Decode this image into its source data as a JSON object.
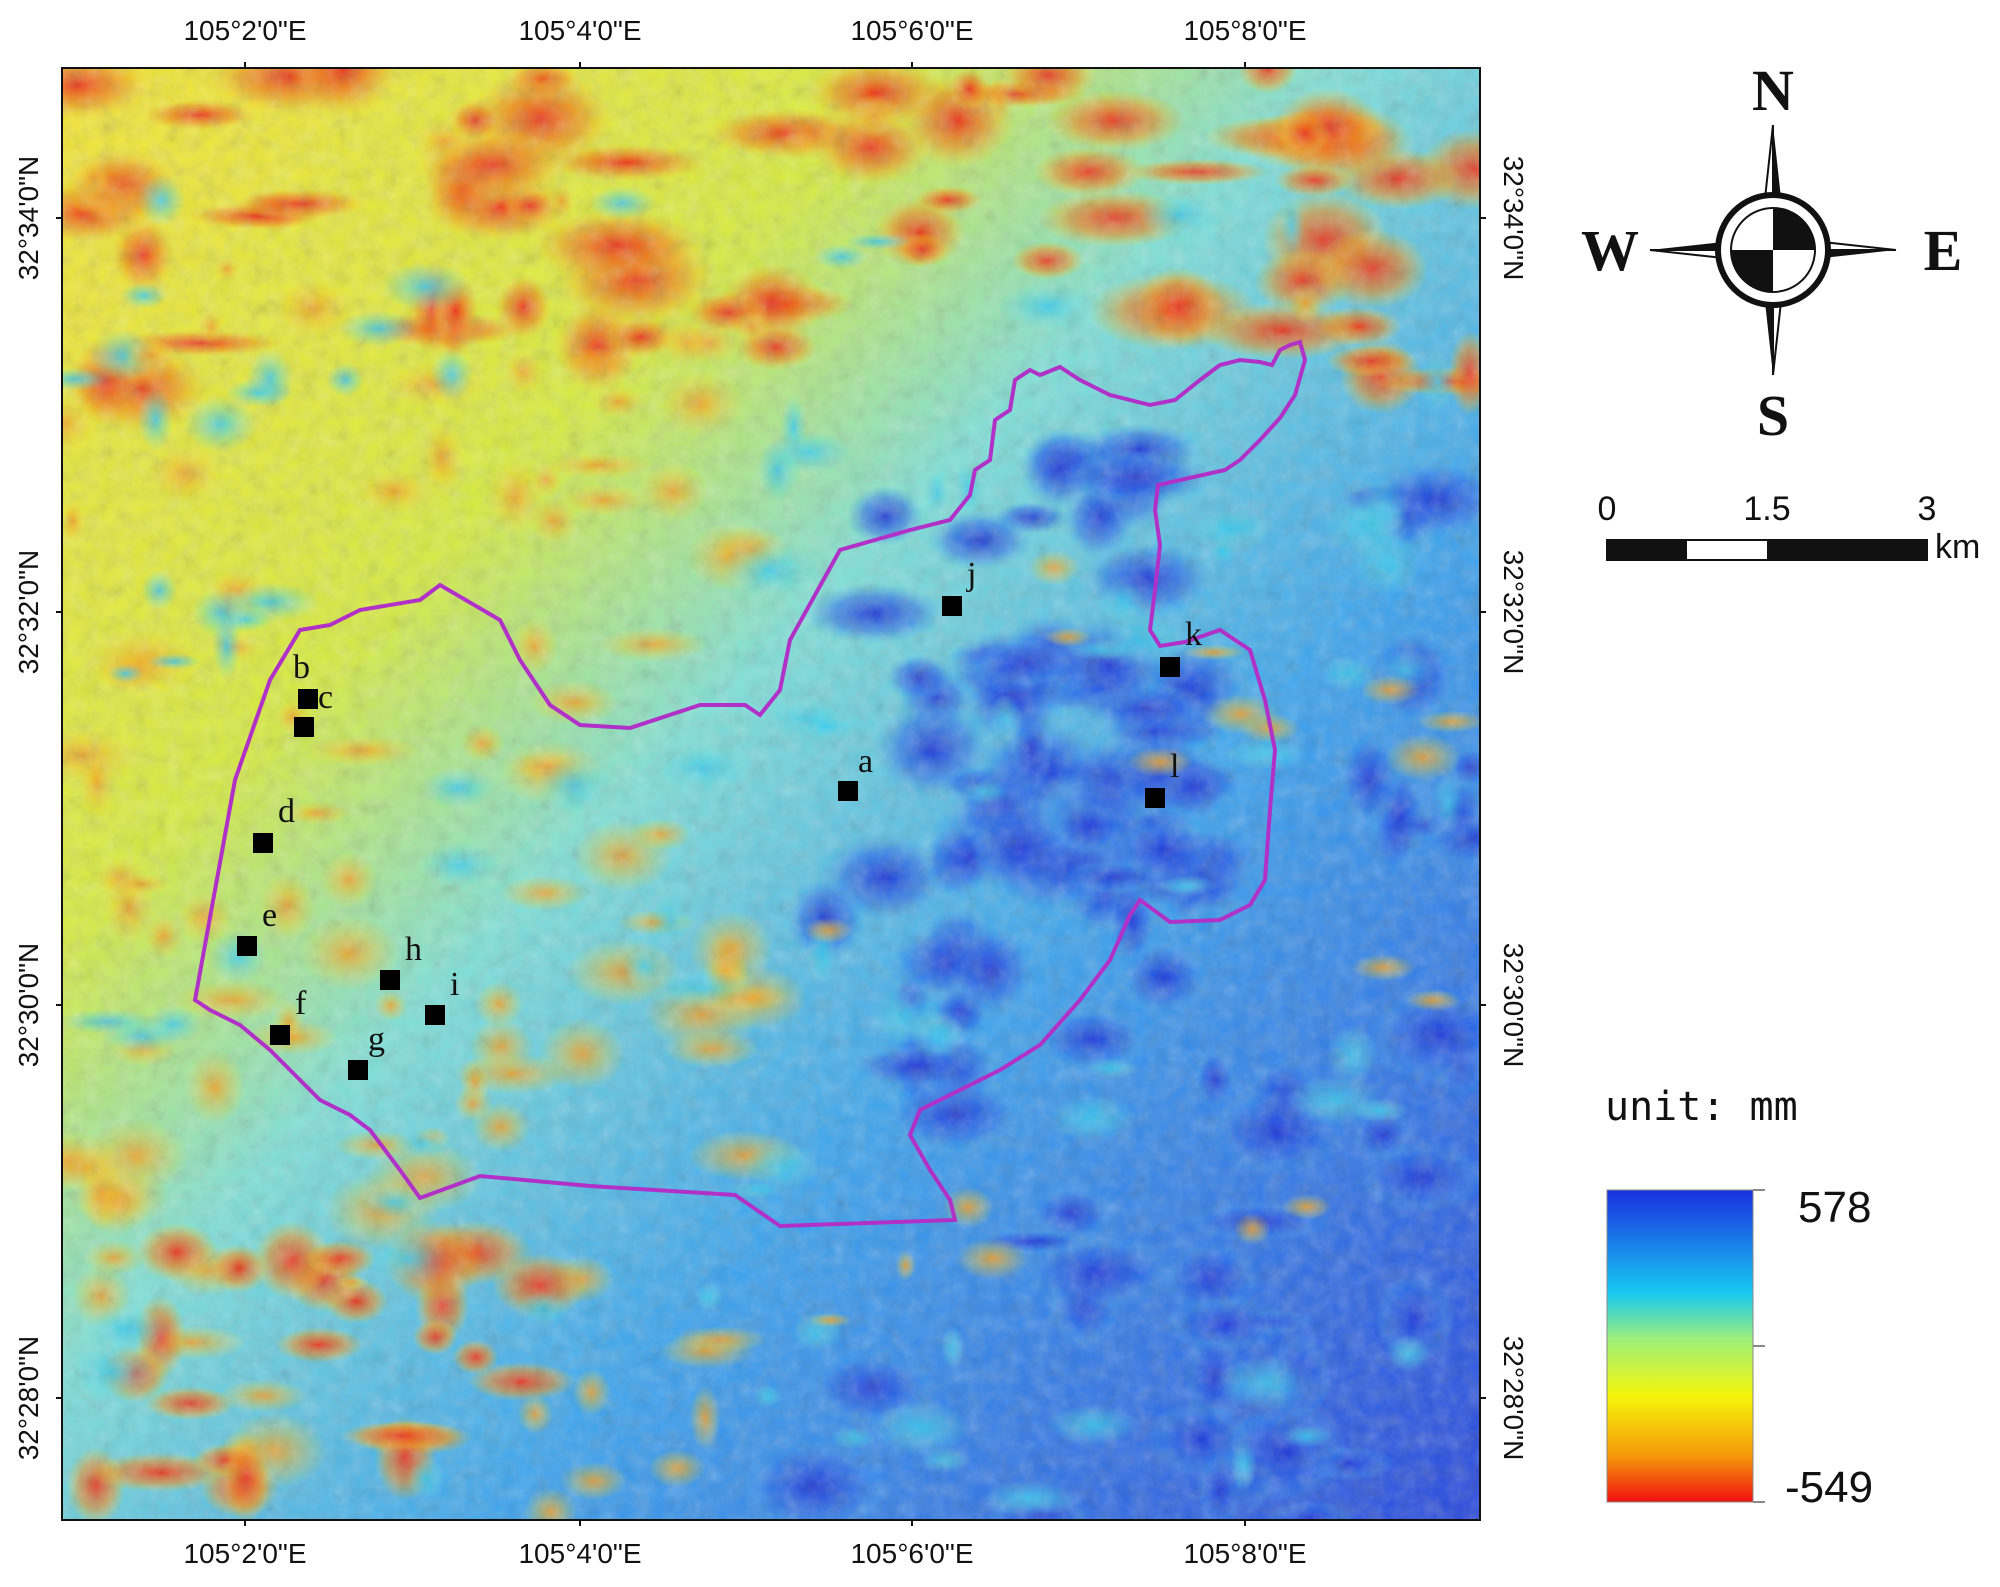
{
  "map": {
    "top_lon_labels": [
      "105°2'0\"E",
      "105°4'0\"E",
      "105°6'0\"E",
      "105°8'0\"E"
    ],
    "bottom_lon_labels": [
      "105°2'0\"E",
      "105°4'0\"E",
      "105°6'0\"E",
      "105°8'0\"E"
    ],
    "left_lat_labels": [
      "32°34'0\"N",
      "32°32'0\"N",
      "32°30'0\"N",
      "32°28'0\"N"
    ],
    "right_lat_labels": [
      "32°34'0\"N",
      "32°32'0\"N",
      "32°30'0\"N",
      "32°28'0\"N"
    ],
    "boundary_color": "#b030c8",
    "marker_color": "#000000",
    "points": [
      {
        "id": "a",
        "label": "a"
      },
      {
        "id": "b",
        "label": "b"
      },
      {
        "id": "c",
        "label": "c"
      },
      {
        "id": "d",
        "label": "d"
      },
      {
        "id": "e",
        "label": "e"
      },
      {
        "id": "f",
        "label": "f"
      },
      {
        "id": "g",
        "label": "g"
      },
      {
        "id": "h",
        "label": "h"
      },
      {
        "id": "i",
        "label": "i"
      },
      {
        "id": "j",
        "label": "j"
      },
      {
        "id": "k",
        "label": "k"
      },
      {
        "id": "l",
        "label": "l"
      }
    ]
  },
  "compass": {
    "north": "N",
    "south": "S",
    "east": "E",
    "west": "W"
  },
  "scale_bar": {
    "ticks": [
      "0",
      "1.5",
      "3"
    ],
    "unit": "km"
  },
  "legend": {
    "title": "unit: mm",
    "max_label": "578",
    "min_label": "-549",
    "colors": [
      "#1a2fe0",
      "#18c9f0",
      "#f5f50a",
      "#f01010"
    ]
  }
}
